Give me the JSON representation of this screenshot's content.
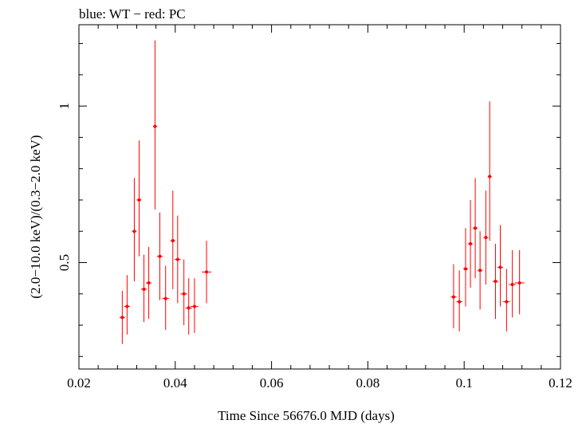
{
  "header_text": "blue: WT − red: PC",
  "chart_data": {
    "type": "scatter",
    "title": "",
    "xlabel": "Time Since 56676.0 MJD (days)",
    "ylabel": "(2.0−10.0 keV)/(0.3−2.0 keV)",
    "xlim": [
      0.02,
      0.12
    ],
    "ylim": [
      0.16,
      1.26
    ],
    "x_ticks": [
      {
        "value": 0.02,
        "label": "0.02"
      },
      {
        "value": 0.04,
        "label": "0.04"
      },
      {
        "value": 0.06,
        "label": "0.06"
      },
      {
        "value": 0.08,
        "label": "0.08"
      },
      {
        "value": 0.1,
        "label": "0.1"
      },
      {
        "value": 0.12,
        "label": "0.12"
      }
    ],
    "y_ticks": [
      {
        "value": 0.5,
        "label": "0.5"
      },
      {
        "value": 1.0,
        "label": "1"
      }
    ],
    "grid": false,
    "series": [
      {
        "color": "#ff0000",
        "points": [
          {
            "x": 0.029,
            "xerr": 0.0006,
            "y": 0.325,
            "ylo": 0.24,
            "yhi": 0.41
          },
          {
            "x": 0.03,
            "xerr": 0.0006,
            "y": 0.36,
            "ylo": 0.27,
            "yhi": 0.46
          },
          {
            "x": 0.0315,
            "xerr": 0.0005,
            "y": 0.6,
            "ylo": 0.44,
            "yhi": 0.77
          },
          {
            "x": 0.0325,
            "xerr": 0.0005,
            "y": 0.7,
            "ylo": 0.52,
            "yhi": 0.89
          },
          {
            "x": 0.0335,
            "xerr": 0.0006,
            "y": 0.415,
            "ylo": 0.31,
            "yhi": 0.525
          },
          {
            "x": 0.0345,
            "xerr": 0.0006,
            "y": 0.435,
            "ylo": 0.32,
            "yhi": 0.55
          },
          {
            "x": 0.0358,
            "xerr": 0.0004,
            "y": 0.935,
            "ylo": 0.67,
            "yhi": 1.21
          },
          {
            "x": 0.0368,
            "xerr": 0.0006,
            "y": 0.52,
            "ylo": 0.38,
            "yhi": 0.66
          },
          {
            "x": 0.038,
            "xerr": 0.0007,
            "y": 0.385,
            "ylo": 0.285,
            "yhi": 0.49
          },
          {
            "x": 0.0395,
            "xerr": 0.0005,
            "y": 0.57,
            "ylo": 0.415,
            "yhi": 0.73
          },
          {
            "x": 0.0405,
            "xerr": 0.0006,
            "y": 0.51,
            "ylo": 0.37,
            "yhi": 0.65
          },
          {
            "x": 0.0418,
            "xerr": 0.0007,
            "y": 0.4,
            "ylo": 0.3,
            "yhi": 0.51
          },
          {
            "x": 0.0428,
            "xerr": 0.0007,
            "y": 0.355,
            "ylo": 0.27,
            "yhi": 0.45
          },
          {
            "x": 0.044,
            "xerr": 0.0008,
            "y": 0.36,
            "ylo": 0.275,
            "yhi": 0.45
          },
          {
            "x": 0.0465,
            "xerr": 0.001,
            "y": 0.47,
            "ylo": 0.37,
            "yhi": 0.57
          },
          {
            "x": 0.0978,
            "xerr": 0.0006,
            "y": 0.39,
            "ylo": 0.29,
            "yhi": 0.495
          },
          {
            "x": 0.099,
            "xerr": 0.0006,
            "y": 0.375,
            "ylo": 0.28,
            "yhi": 0.475
          },
          {
            "x": 0.1003,
            "xerr": 0.0005,
            "y": 0.48,
            "ylo": 0.36,
            "yhi": 0.61
          },
          {
            "x": 0.1013,
            "xerr": 0.0005,
            "y": 0.56,
            "ylo": 0.42,
            "yhi": 0.7
          },
          {
            "x": 0.1023,
            "xerr": 0.0005,
            "y": 0.61,
            "ylo": 0.45,
            "yhi": 0.77
          },
          {
            "x": 0.1033,
            "xerr": 0.0005,
            "y": 0.475,
            "ylo": 0.35,
            "yhi": 0.6
          },
          {
            "x": 0.1045,
            "xerr": 0.0005,
            "y": 0.58,
            "ylo": 0.43,
            "yhi": 0.73
          },
          {
            "x": 0.1053,
            "xerr": 0.0004,
            "y": 0.775,
            "ylo": 0.57,
            "yhi": 1.015
          },
          {
            "x": 0.1065,
            "xerr": 0.0006,
            "y": 0.44,
            "ylo": 0.32,
            "yhi": 0.56
          },
          {
            "x": 0.1075,
            "xerr": 0.0006,
            "y": 0.485,
            "ylo": 0.36,
            "yhi": 0.62
          },
          {
            "x": 0.1088,
            "xerr": 0.0007,
            "y": 0.375,
            "ylo": 0.28,
            "yhi": 0.48
          },
          {
            "x": 0.11,
            "xerr": 0.0007,
            "y": 0.43,
            "ylo": 0.325,
            "yhi": 0.54
          },
          {
            "x": 0.1115,
            "xerr": 0.001,
            "y": 0.435,
            "ylo": 0.335,
            "yhi": 0.54
          }
        ]
      }
    ]
  }
}
